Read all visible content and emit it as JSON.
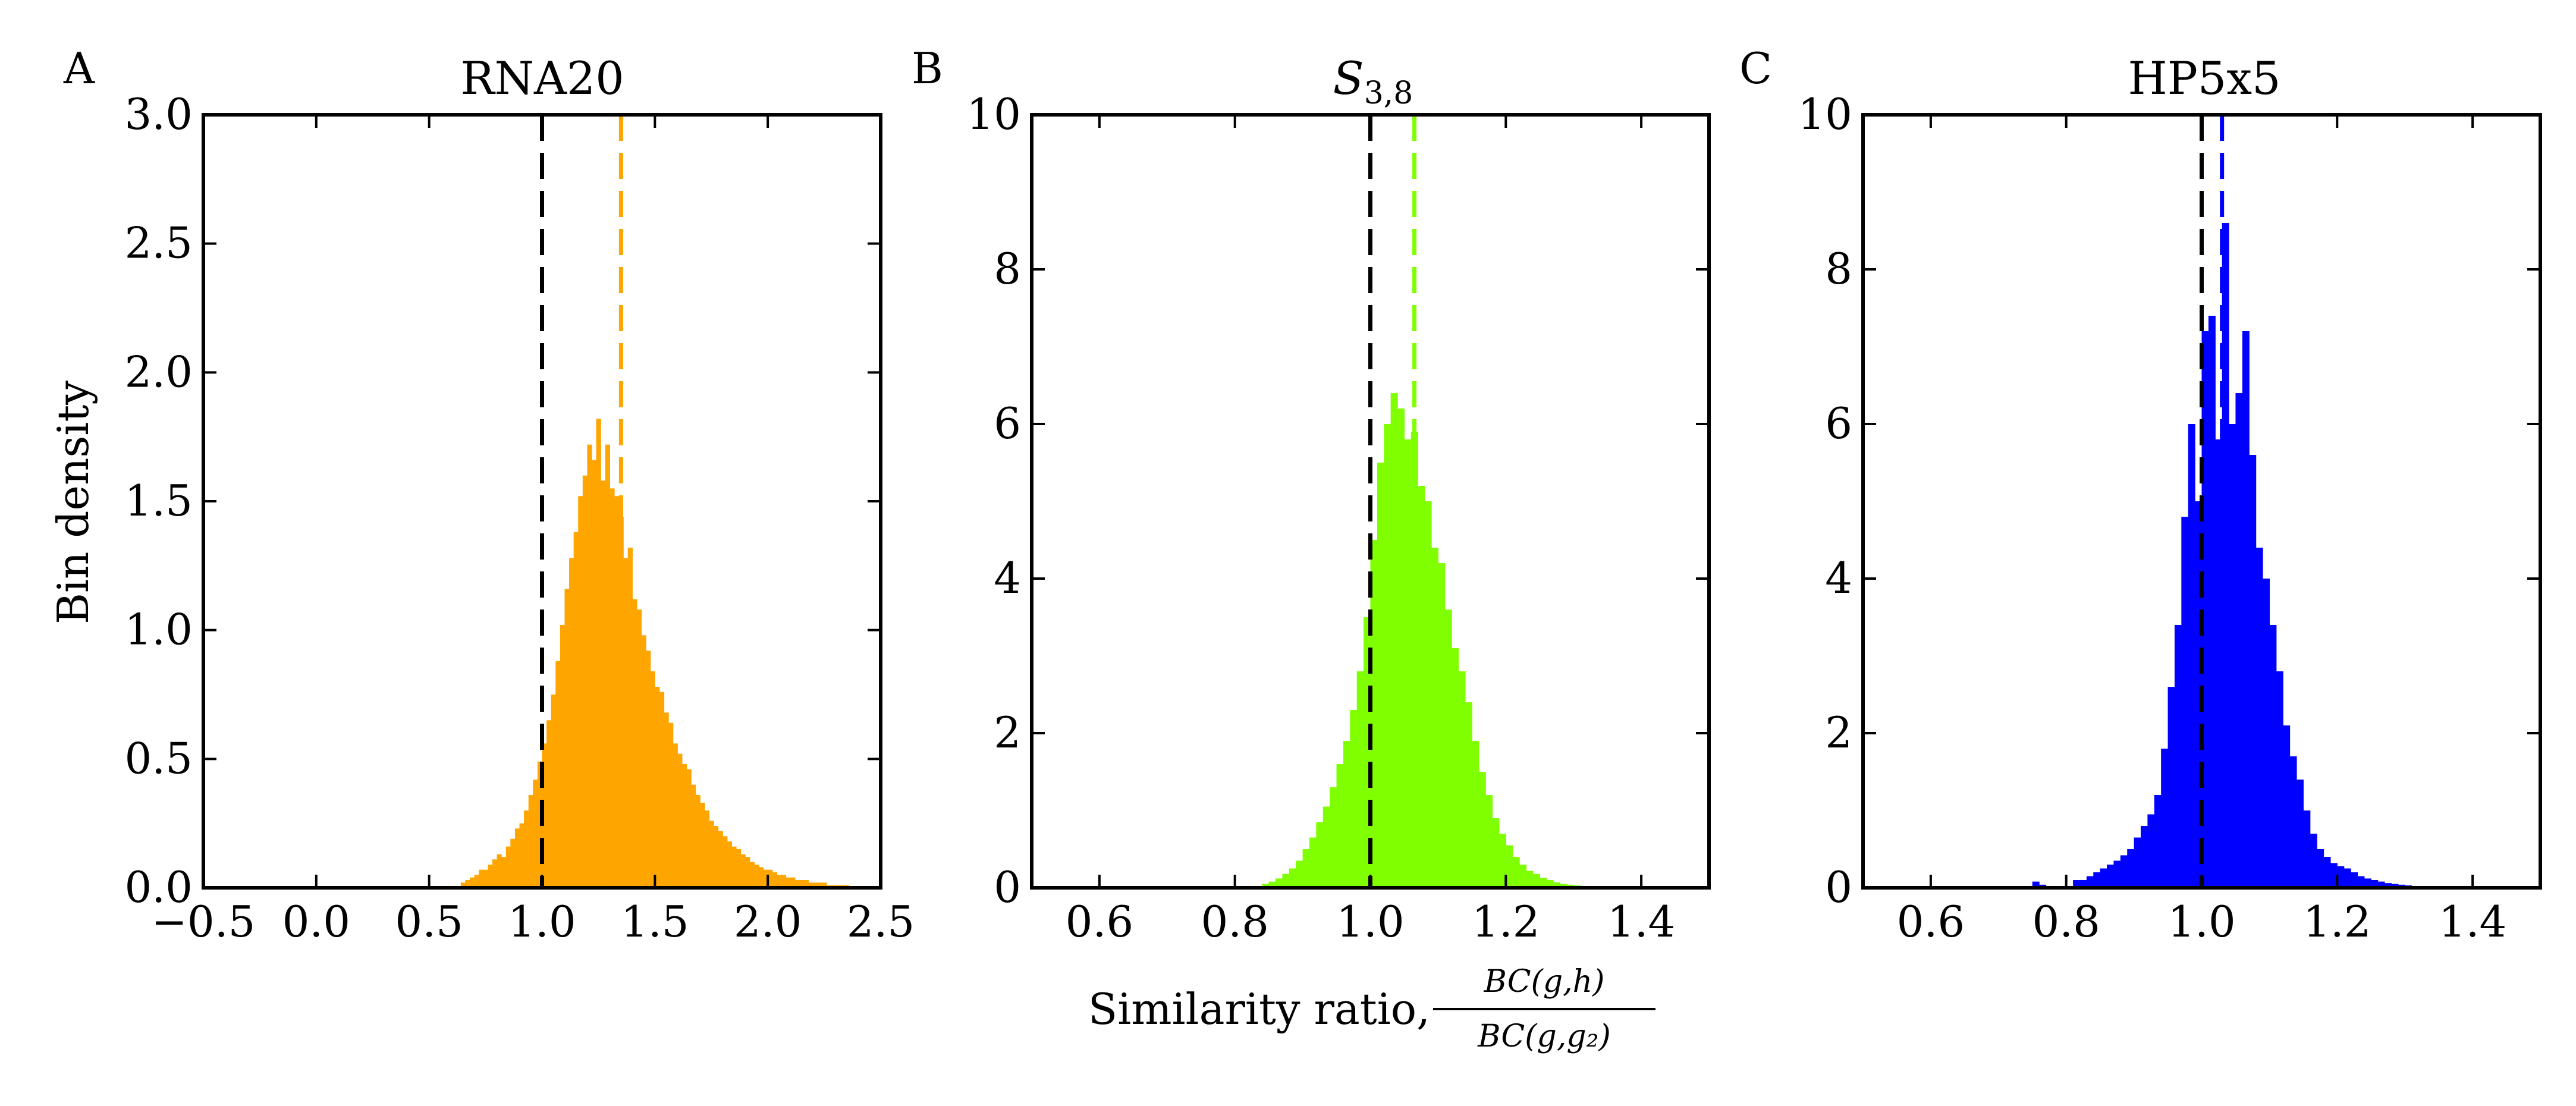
{
  "figure": {
    "ylabel": "Bin density",
    "xlabel_text": "Similarity ratio, ",
    "xlabel_numerator": "BC(g,h)",
    "xlabel_denominator": "BC(g,g₂)"
  },
  "chart_data": [
    {
      "type": "bar",
      "panel": "A",
      "title": "RNA20",
      "color": "#FFA500",
      "xlim": [
        -0.5,
        2.5
      ],
      "ylim": [
        0,
        3.0
      ],
      "xticks": [
        -0.5,
        0.0,
        0.5,
        1.0,
        1.5,
        2.0,
        2.5
      ],
      "xtick_labels": [
        "−0.5",
        "0.0",
        "0.5",
        "1.0",
        "1.5",
        "2.0",
        "2.5"
      ],
      "yticks": [
        0,
        0.5,
        1.0,
        1.5,
        2.0,
        2.5,
        3.0
      ],
      "ytick_labels": [
        "0.0",
        "0.5",
        "1.0",
        "1.5",
        "2.0",
        "2.5",
        "3.0"
      ],
      "ref_line": 1.0,
      "mean_line": 1.35,
      "bin_width": 0.02,
      "bins": [
        [
          0.64,
          0.02
        ],
        [
          0.66,
          0.03
        ],
        [
          0.68,
          0.04
        ],
        [
          0.7,
          0.05
        ],
        [
          0.72,
          0.07
        ],
        [
          0.74,
          0.07
        ],
        [
          0.76,
          0.09
        ],
        [
          0.78,
          0.11
        ],
        [
          0.8,
          0.13
        ],
        [
          0.82,
          0.12
        ],
        [
          0.84,
          0.16
        ],
        [
          0.86,
          0.19
        ],
        [
          0.88,
          0.23
        ],
        [
          0.9,
          0.25
        ],
        [
          0.92,
          0.3
        ],
        [
          0.94,
          0.36
        ],
        [
          0.96,
          0.42
        ],
        [
          0.98,
          0.49
        ],
        [
          1.0,
          0.56
        ],
        [
          1.02,
          0.65
        ],
        [
          1.04,
          0.75
        ],
        [
          1.06,
          0.88
        ],
        [
          1.08,
          1.02
        ],
        [
          1.1,
          1.16
        ],
        [
          1.12,
          1.28
        ],
        [
          1.14,
          1.38
        ],
        [
          1.16,
          1.52
        ],
        [
          1.18,
          1.6
        ],
        [
          1.2,
          1.72
        ],
        [
          1.22,
          1.66
        ],
        [
          1.24,
          1.82
        ],
        [
          1.26,
          1.58
        ],
        [
          1.28,
          1.72
        ],
        [
          1.3,
          1.55
        ],
        [
          1.32,
          1.52
        ],
        [
          1.34,
          1.44
        ],
        [
          1.36,
          1.28
        ],
        [
          1.38,
          1.32
        ],
        [
          1.4,
          1.12
        ],
        [
          1.42,
          1.08
        ],
        [
          1.44,
          0.98
        ],
        [
          1.46,
          0.92
        ],
        [
          1.48,
          0.84
        ],
        [
          1.5,
          0.78
        ],
        [
          1.52,
          0.76
        ],
        [
          1.54,
          0.68
        ],
        [
          1.56,
          0.64
        ],
        [
          1.58,
          0.56
        ],
        [
          1.6,
          0.52
        ],
        [
          1.62,
          0.48
        ],
        [
          1.64,
          0.46
        ],
        [
          1.66,
          0.4
        ],
        [
          1.68,
          0.36
        ],
        [
          1.7,
          0.33
        ],
        [
          1.72,
          0.3
        ],
        [
          1.74,
          0.26
        ],
        [
          1.76,
          0.24
        ],
        [
          1.78,
          0.22
        ],
        [
          1.8,
          0.2
        ],
        [
          1.82,
          0.18
        ],
        [
          1.84,
          0.16
        ],
        [
          1.86,
          0.15
        ],
        [
          1.88,
          0.13
        ],
        [
          1.9,
          0.12
        ],
        [
          1.92,
          0.1
        ],
        [
          1.94,
          0.09
        ],
        [
          1.96,
          0.08
        ],
        [
          1.98,
          0.07
        ],
        [
          2.0,
          0.07
        ],
        [
          2.02,
          0.06
        ],
        [
          2.04,
          0.05
        ],
        [
          2.06,
          0.05
        ],
        [
          2.08,
          0.04
        ],
        [
          2.1,
          0.04
        ],
        [
          2.12,
          0.03
        ],
        [
          2.14,
          0.03
        ],
        [
          2.16,
          0.03
        ],
        [
          2.18,
          0.02
        ],
        [
          2.2,
          0.02
        ],
        [
          2.22,
          0.02
        ],
        [
          2.24,
          0.02
        ],
        [
          2.26,
          0.01
        ],
        [
          2.28,
          0.01
        ],
        [
          2.3,
          0.01
        ],
        [
          2.32,
          0.01
        ],
        [
          2.34,
          0.01
        ],
        [
          2.36,
          0.005
        ]
      ]
    },
    {
      "type": "bar",
      "panel": "B",
      "title_main": "S",
      "title_sub": "3,8",
      "color": "#7FFF00",
      "xlim": [
        0.5,
        1.5
      ],
      "ylim": [
        0,
        10
      ],
      "xticks": [
        0.6,
        0.8,
        1.0,
        1.2,
        1.4
      ],
      "xtick_labels": [
        "0.6",
        "0.8",
        "1.0",
        "1.2",
        "1.4"
      ],
      "yticks": [
        0,
        2,
        4,
        6,
        8,
        10
      ],
      "ytick_labels": [
        "0",
        "2",
        "4",
        "6",
        "8",
        "10"
      ],
      "ref_line": 1.0,
      "mean_line": 1.065,
      "bin_width": 0.01,
      "bins": [
        [
          0.84,
          0.05
        ],
        [
          0.85,
          0.08
        ],
        [
          0.86,
          0.12
        ],
        [
          0.87,
          0.18
        ],
        [
          0.88,
          0.25
        ],
        [
          0.89,
          0.35
        ],
        [
          0.9,
          0.5
        ],
        [
          0.91,
          0.65
        ],
        [
          0.92,
          0.85
        ],
        [
          0.93,
          1.05
        ],
        [
          0.94,
          1.3
        ],
        [
          0.95,
          1.6
        ],
        [
          0.96,
          1.9
        ],
        [
          0.97,
          2.3
        ],
        [
          0.98,
          2.8
        ],
        [
          0.99,
          3.5
        ],
        [
          1.0,
          4.5
        ],
        [
          1.01,
          5.5
        ],
        [
          1.02,
          6.0
        ],
        [
          1.03,
          6.4
        ],
        [
          1.04,
          6.2
        ],
        [
          1.05,
          5.8
        ],
        [
          1.06,
          5.9
        ],
        [
          1.07,
          5.2
        ],
        [
          1.08,
          5.0
        ],
        [
          1.09,
          4.4
        ],
        [
          1.1,
          4.2
        ],
        [
          1.11,
          3.6
        ],
        [
          1.12,
          3.1
        ],
        [
          1.13,
          2.8
        ],
        [
          1.14,
          2.4
        ],
        [
          1.15,
          1.9
        ],
        [
          1.16,
          1.5
        ],
        [
          1.17,
          1.2
        ],
        [
          1.18,
          0.9
        ],
        [
          1.19,
          0.7
        ],
        [
          1.2,
          0.55
        ],
        [
          1.21,
          0.4
        ],
        [
          1.22,
          0.3
        ],
        [
          1.23,
          0.22
        ],
        [
          1.24,
          0.18
        ],
        [
          1.25,
          0.13
        ],
        [
          1.26,
          0.1
        ],
        [
          1.27,
          0.07
        ],
        [
          1.28,
          0.05
        ],
        [
          1.29,
          0.04
        ],
        [
          1.3,
          0.03
        ],
        [
          1.31,
          0.02
        ],
        [
          1.32,
          0.02
        ],
        [
          1.33,
          0.01
        ],
        [
          1.34,
          0.01
        ],
        [
          1.35,
          0.01
        ],
        [
          1.36,
          0.01
        ]
      ]
    },
    {
      "type": "bar",
      "panel": "C",
      "title": "HP5x5",
      "color": "#0000FF",
      "xlim": [
        0.5,
        1.5
      ],
      "ylim": [
        0,
        10
      ],
      "xticks": [
        0.6,
        0.8,
        1.0,
        1.2,
        1.4
      ],
      "xtick_labels": [
        "0.6",
        "0.8",
        "1.0",
        "1.2",
        "1.4"
      ],
      "yticks": [
        0,
        2,
        4,
        6,
        8,
        10
      ],
      "ytick_labels": [
        "0",
        "2",
        "4",
        "6",
        "8",
        "10"
      ],
      "ref_line": 1.0,
      "mean_line": 1.03,
      "bin_width": 0.01,
      "bins": [
        [
          0.75,
          0.08
        ],
        [
          0.76,
          0.04
        ],
        [
          0.81,
          0.1
        ],
        [
          0.82,
          0.1
        ],
        [
          0.83,
          0.15
        ],
        [
          0.84,
          0.2
        ],
        [
          0.85,
          0.25
        ],
        [
          0.86,
          0.3
        ],
        [
          0.87,
          0.35
        ],
        [
          0.88,
          0.42
        ],
        [
          0.89,
          0.5
        ],
        [
          0.9,
          0.65
        ],
        [
          0.91,
          0.8
        ],
        [
          0.92,
          0.95
        ],
        [
          0.93,
          1.2
        ],
        [
          0.94,
          1.8
        ],
        [
          0.95,
          2.6
        ],
        [
          0.96,
          3.4
        ],
        [
          0.97,
          4.8
        ],
        [
          0.98,
          6.0
        ],
        [
          0.99,
          5.0
        ],
        [
          1.0,
          7.2
        ],
        [
          1.01,
          7.4
        ],
        [
          1.02,
          5.8
        ],
        [
          1.03,
          8.6
        ],
        [
          1.04,
          6.0
        ],
        [
          1.05,
          6.4
        ],
        [
          1.06,
          7.2
        ],
        [
          1.07,
          5.6
        ],
        [
          1.08,
          4.4
        ],
        [
          1.09,
          4.0
        ],
        [
          1.1,
          3.4
        ],
        [
          1.11,
          2.8
        ],
        [
          1.12,
          2.1
        ],
        [
          1.13,
          1.7
        ],
        [
          1.14,
          1.4
        ],
        [
          1.15,
          1.0
        ],
        [
          1.16,
          0.7
        ],
        [
          1.17,
          0.5
        ],
        [
          1.18,
          0.4
        ],
        [
          1.19,
          0.32
        ],
        [
          1.2,
          0.28
        ],
        [
          1.21,
          0.25
        ],
        [
          1.22,
          0.2
        ],
        [
          1.23,
          0.15
        ],
        [
          1.24,
          0.12
        ],
        [
          1.25,
          0.1
        ],
        [
          1.26,
          0.08
        ],
        [
          1.27,
          0.06
        ],
        [
          1.28,
          0.05
        ],
        [
          1.29,
          0.04
        ],
        [
          1.3,
          0.03
        ],
        [
          1.31,
          0.02
        ],
        [
          1.32,
          0.02
        ],
        [
          1.33,
          0.02
        ],
        [
          1.34,
          0.01
        ]
      ]
    }
  ]
}
